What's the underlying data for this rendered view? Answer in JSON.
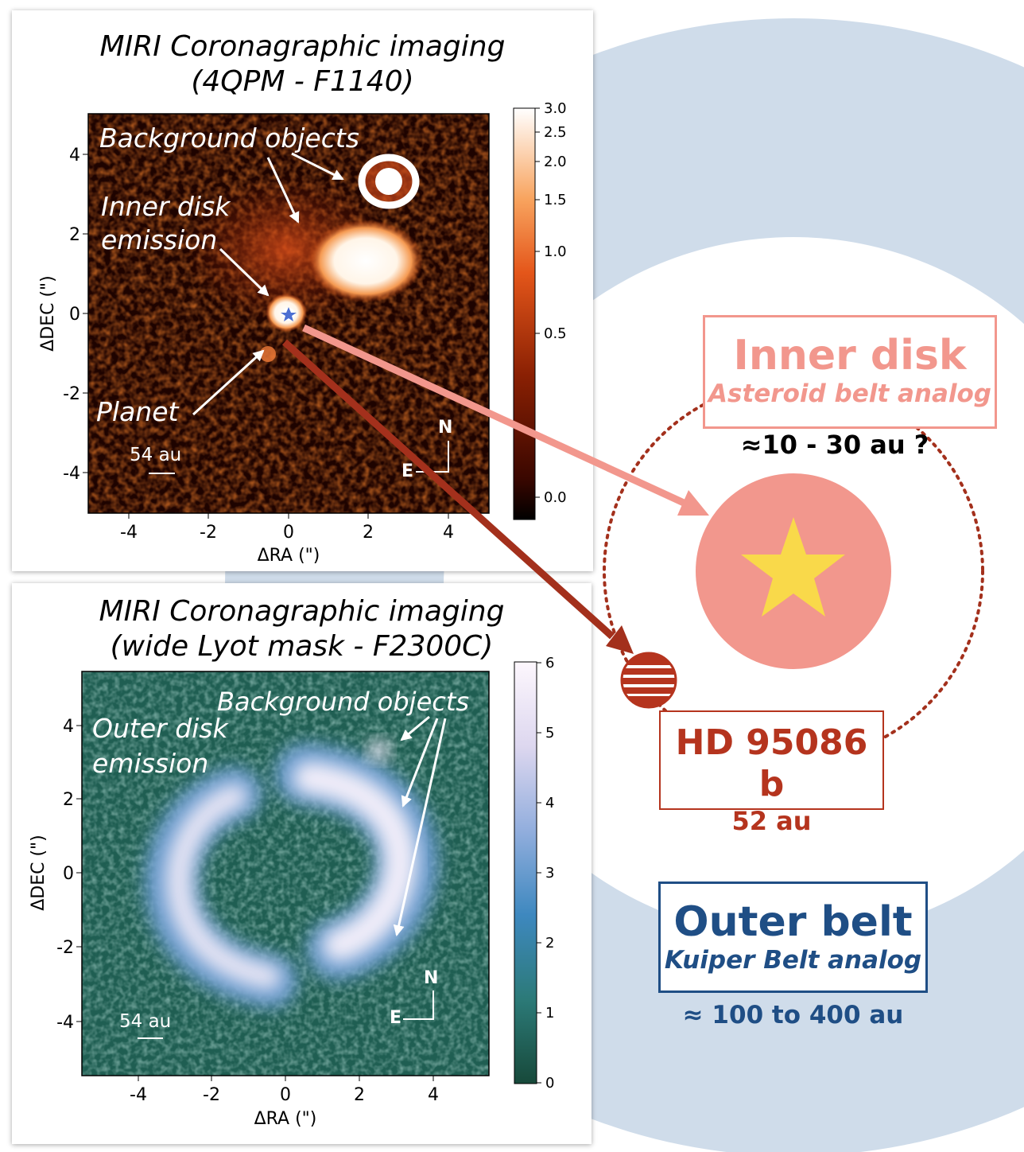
{
  "top_panel": {
    "title_line1": "MIRI Coronagraphic imaging",
    "title_line2": "(4QPM - F1140)",
    "xlabel": "ΔRA (\")",
    "ylabel": "ΔDEC (\")",
    "xticks": [
      "-4",
      "-2",
      "0",
      "2",
      "4"
    ],
    "yticks": [
      "4",
      "2",
      "0",
      "-2",
      "-4"
    ],
    "colorbar_ticks": [
      "3.0",
      "2.5",
      "2.0",
      "1.5",
      "1.0",
      "0.5",
      "0.0"
    ],
    "annotations": {
      "background_objects": "Background objects",
      "inner_disk_line1": "Inner disk",
      "inner_disk_line2": "emission",
      "planet": "Planet",
      "scale": "54 au",
      "north": "N",
      "east": "E"
    }
  },
  "bottom_panel": {
    "title_line1": "MIRI Coronagraphic imaging",
    "title_line2": "(wide Lyot mask - F2300C)",
    "xlabel": "ΔRA (\")",
    "ylabel": "ΔDEC (\")",
    "xticks": [
      "-4",
      "-2",
      "0",
      "2",
      "4"
    ],
    "yticks": [
      "4",
      "2",
      "0",
      "-2",
      "-4"
    ],
    "colorbar_ticks": [
      "6",
      "5",
      "4",
      "3",
      "2",
      "1",
      "0"
    ],
    "annotations": {
      "background_objects": "Background objects",
      "outer_disk_line1": "Outer disk",
      "outer_disk_line2": "emission",
      "scale": "54 au",
      "north": "N",
      "east": "E"
    }
  },
  "schematic": {
    "inner_disk": {
      "title": "Inner disk",
      "subtitle": "Asteroid belt analog",
      "range": "≈10 - 30  au ?"
    },
    "planet": {
      "name": "HD 95086 b",
      "distance": "52 au"
    },
    "outer_belt": {
      "title": "Outer belt",
      "subtitle": "Kuiper Belt analog",
      "range": "≈ 100 to 400 au"
    }
  },
  "colors": {
    "inner": "#f2978d",
    "planet": "#b5341e",
    "outer": "#1f4e85",
    "belt_fill": "#cfdcea",
    "star": "#f9d94a"
  }
}
